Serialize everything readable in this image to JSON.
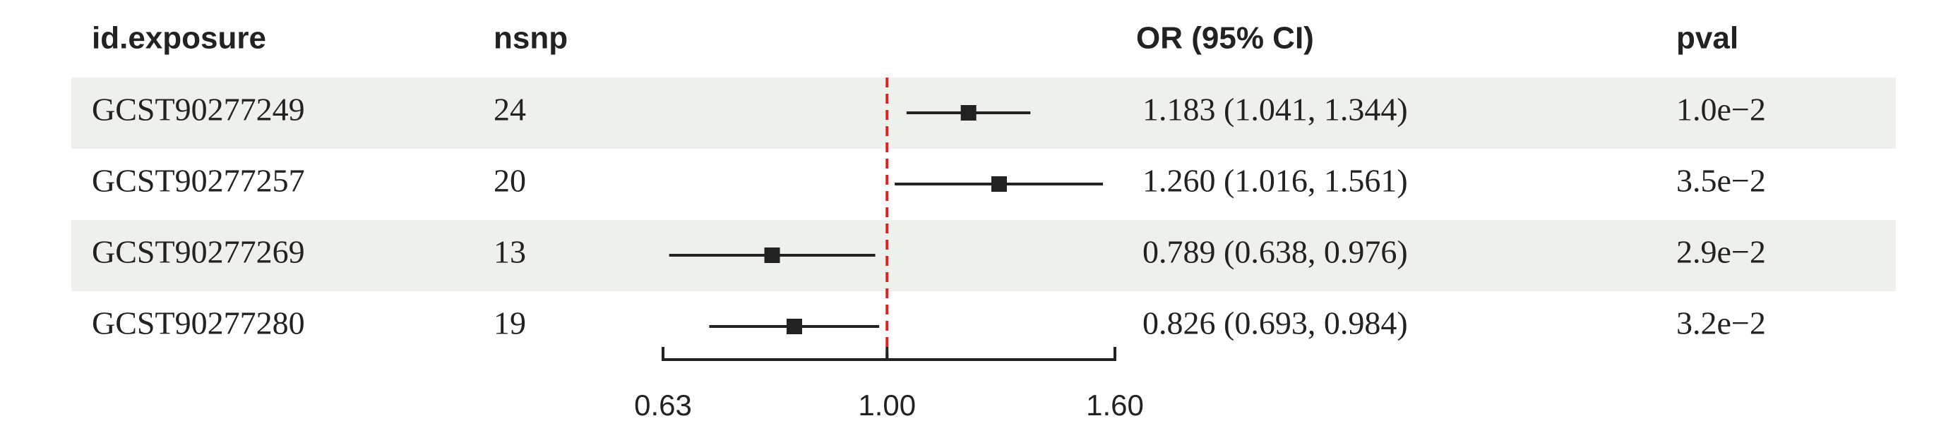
{
  "chart_data": {
    "type": "forest",
    "columns": [
      "id.exposure",
      "nsnp",
      "OR (95% CI)",
      "pval"
    ],
    "ids": [
      "GCST90277249",
      "GCST90277257",
      "GCST90277269",
      "GCST90277280"
    ],
    "nsnp": [
      24,
      20,
      13,
      19
    ],
    "values": [
      1.183,
      1.26,
      0.789,
      0.826
    ],
    "lower": [
      1.041,
      1.016,
      0.638,
      0.693
    ],
    "upper": [
      1.344,
      1.561,
      0.976,
      0.984
    ],
    "value_labels": [
      "1.183 (1.041, 1.344)",
      "1.260 (1.016, 1.561)",
      "0.789 (0.638, 0.976)",
      "0.826 (0.693, 0.984)"
    ],
    "pvals": [
      "1.0e−2",
      "3.5e−2",
      "2.9e−2",
      "3.2e−2"
    ],
    "xlim": [
      0.63,
      1.6
    ],
    "xticks": [
      0.63,
      {
        "value": 1,
        "label": "1.00"
      },
      {
        "value": 1.6,
        "label": "1.60"
      }
    ],
    "log_scale": true,
    "reference_line": 1,
    "reference_color": "#d62728",
    "color": "#222222",
    "row_shading": "#eef0ec"
  }
}
